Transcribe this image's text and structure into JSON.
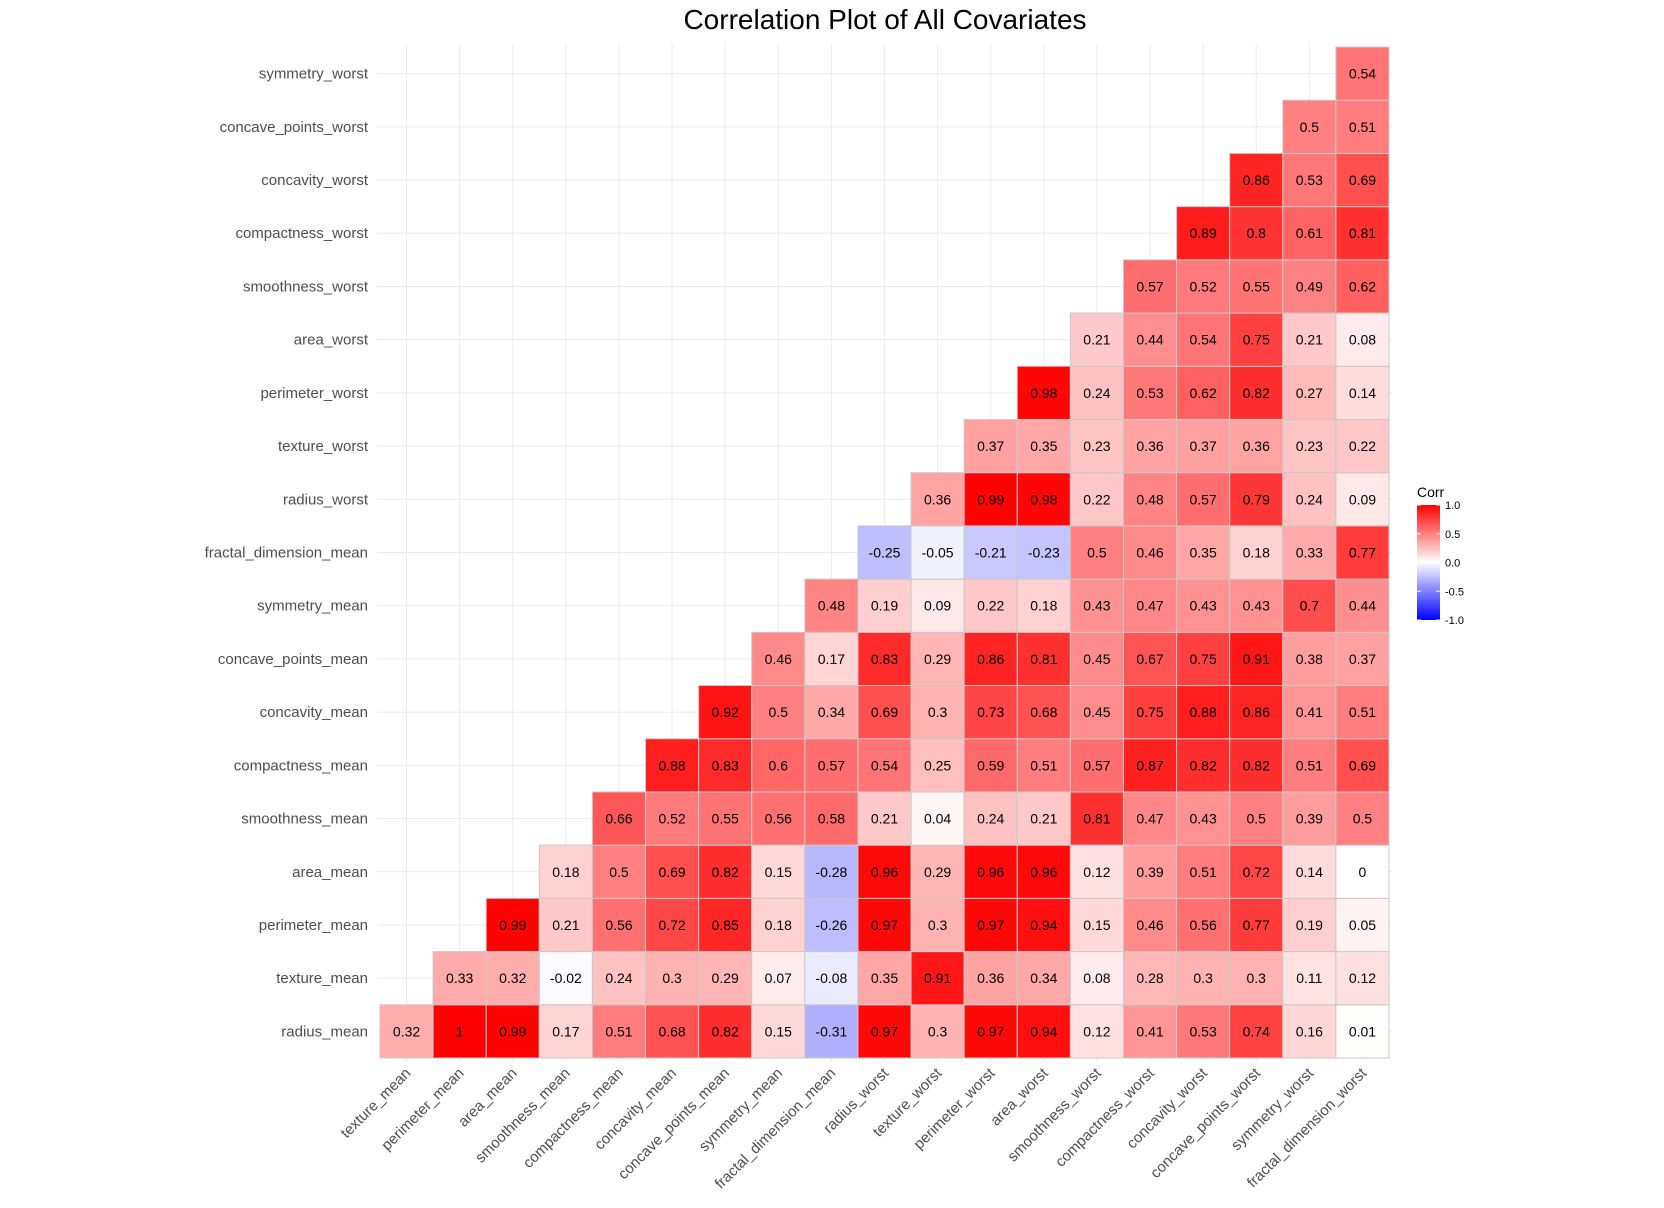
{
  "chart_data": {
    "type": "heatmap",
    "title": "Correlation Plot of All Covariates",
    "x_categories": [
      "texture_mean",
      "perimeter_mean",
      "area_mean",
      "smoothness_mean",
      "compactness_mean",
      "concavity_mean",
      "concave_points_mean",
      "symmetry_mean",
      "fractal_dimension_mean",
      "radius_worst",
      "texture_worst",
      "perimeter_worst",
      "area_worst",
      "smoothness_worst",
      "compactness_worst",
      "concavity_worst",
      "concave_points_worst",
      "symmetry_worst",
      "fractal_dimension_worst"
    ],
    "y_categories": [
      "radius_mean",
      "texture_mean",
      "perimeter_mean",
      "area_mean",
      "smoothness_mean",
      "compactness_mean",
      "concavity_mean",
      "concave_points_mean",
      "symmetry_mean",
      "fractal_dimension_mean",
      "radius_worst",
      "texture_worst",
      "perimeter_worst",
      "area_worst",
      "smoothness_worst",
      "compactness_worst",
      "concavity_worst",
      "concave_points_worst",
      "symmetry_worst"
    ],
    "rows": [
      [
        "0.32",
        "1",
        "0.99",
        "0.17",
        "0.51",
        "0.68",
        "0.82",
        "0.15",
        "-0.31",
        "0.97",
        "0.3",
        "0.97",
        "0.94",
        "0.12",
        "0.41",
        "0.53",
        "0.74",
        "0.16",
        "0.01"
      ],
      [
        "0.33",
        "0.32",
        "-0.02",
        "0.24",
        "0.3",
        "0.29",
        "0.07",
        "-0.08",
        "0.35",
        "0.91",
        "0.36",
        "0.34",
        "0.08",
        "0.28",
        "0.3",
        "0.3",
        "0.11",
        "0.12"
      ],
      [
        "0.99",
        "0.21",
        "0.56",
        "0.72",
        "0.85",
        "0.18",
        "-0.26",
        "0.97",
        "0.3",
        "0.97",
        "0.94",
        "0.15",
        "0.46",
        "0.56",
        "0.77",
        "0.19",
        "0.05"
      ],
      [
        "0.18",
        "0.5",
        "0.69",
        "0.82",
        "0.15",
        "-0.28",
        "0.96",
        "0.29",
        "0.96",
        "0.96",
        "0.12",
        "0.39",
        "0.51",
        "0.72",
        "0.14",
        "0"
      ],
      [
        "0.66",
        "0.52",
        "0.55",
        "0.56",
        "0.58",
        "0.21",
        "0.04",
        "0.24",
        "0.21",
        "0.81",
        "0.47",
        "0.43",
        "0.5",
        "0.39",
        "0.5"
      ],
      [
        "0.88",
        "0.83",
        "0.6",
        "0.57",
        "0.54",
        "0.25",
        "0.59",
        "0.51",
        "0.57",
        "0.87",
        "0.82",
        "0.82",
        "0.51",
        "0.69"
      ],
      [
        "0.92",
        "0.5",
        "0.34",
        "0.69",
        "0.3",
        "0.73",
        "0.68",
        "0.45",
        "0.75",
        "0.88",
        "0.86",
        "0.41",
        "0.51"
      ],
      [
        "0.46",
        "0.17",
        "0.83",
        "0.29",
        "0.86",
        "0.81",
        "0.45",
        "0.67",
        "0.75",
        "0.91",
        "0.38",
        "0.37"
      ],
      [
        "0.48",
        "0.19",
        "0.09",
        "0.22",
        "0.18",
        "0.43",
        "0.47",
        "0.43",
        "0.43",
        "0.7",
        "0.44"
      ],
      [
        "-0.25",
        "-0.05",
        "-0.21",
        "-0.23",
        "0.5",
        "0.46",
        "0.35",
        "0.18",
        "0.33",
        "0.77"
      ],
      [
        "0.36",
        "0.99",
        "0.98",
        "0.22",
        "0.48",
        "0.57",
        "0.79",
        "0.24",
        "0.09"
      ],
      [
        "0.37",
        "0.35",
        "0.23",
        "0.36",
        "0.37",
        "0.36",
        "0.23",
        "0.22"
      ],
      [
        "0.98",
        "0.24",
        "0.53",
        "0.62",
        "0.82",
        "0.27",
        "0.14"
      ],
      [
        "0.21",
        "0.44",
        "0.54",
        "0.75",
        "0.21",
        "0.08"
      ],
      [
        "0.57",
        "0.52",
        "0.55",
        "0.49",
        "0.62"
      ],
      [
        "0.89",
        "0.8",
        "0.61",
        "0.81"
      ],
      [
        "0.86",
        "0.53",
        "0.69"
      ],
      [
        "0.5",
        "0.51"
      ],
      [
        "0.54"
      ]
    ],
    "legend": {
      "title": "Corr",
      "ticks": [
        "1.0",
        "0.5",
        "0.0",
        "-0.5",
        "-1.0"
      ],
      "range": [
        -1,
        1
      ],
      "position": "right"
    },
    "colors": {
      "low": "#0000ff",
      "mid": "#ffffff",
      "high": "#ff0000",
      "border": "#c8c8c8",
      "grid": "#ebebeb"
    },
    "grid": true
  }
}
